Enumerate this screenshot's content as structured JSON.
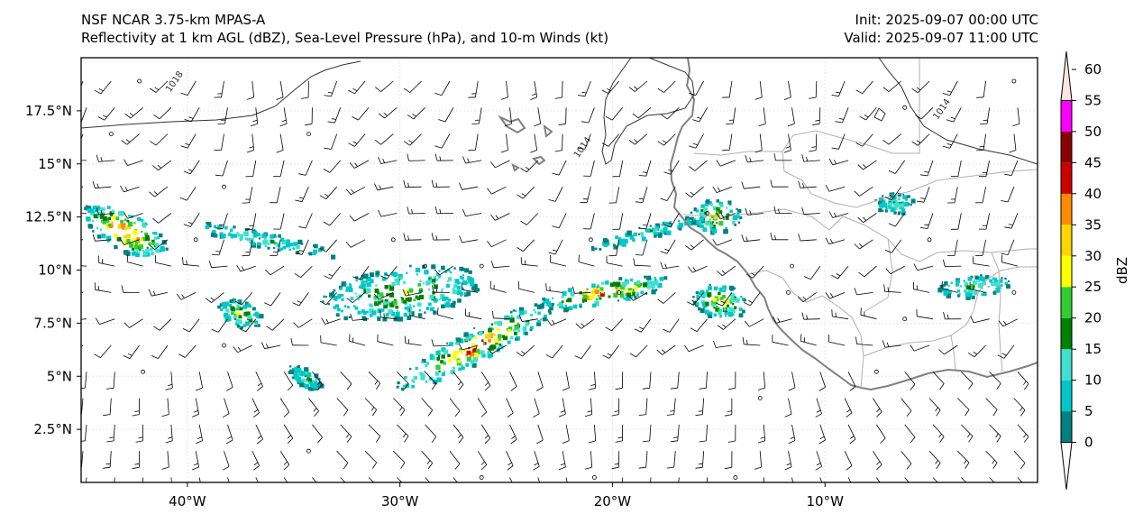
{
  "header": {
    "model": "NSF NCAR 3.75-km MPAS-A",
    "fields": "Reflectivity at 1 km AGL (dBZ), Sea-Level Pressure (hPa), and 10-m Winds (kt)",
    "init": "Init: 2025-09-07 00:00 UTC",
    "valid": "Valid: 2025-09-07 11:00 UTC"
  },
  "map": {
    "lon_range": [
      -45,
      0
    ],
    "lat_range": [
      0,
      20
    ],
    "lon_ticks": [
      {
        "value": -40,
        "label": "40°W"
      },
      {
        "value": -30,
        "label": "30°W"
      },
      {
        "value": -20,
        "label": "20°W"
      },
      {
        "value": -10,
        "label": "10°W"
      }
    ],
    "lat_ticks": [
      {
        "value": 2.5,
        "label": "2.5°N"
      },
      {
        "value": 5,
        "label": "5°N"
      },
      {
        "value": 7.5,
        "label": "7.5°N"
      },
      {
        "value": 10,
        "label": "10°N"
      },
      {
        "value": 12.5,
        "label": "12.5°N"
      },
      {
        "value": 15,
        "label": "15°N"
      },
      {
        "value": 17.5,
        "label": "17.5°N"
      }
    ],
    "isobar_labels": [
      {
        "text": "1018",
        "lon": -40.5,
        "lat": 18.8
      },
      {
        "text": "1014",
        "lon": -21.3,
        "lat": 15.7
      },
      {
        "text": "1014",
        "lon": -4.4,
        "lat": 17.5
      }
    ],
    "coastline_color": "#808080",
    "border_color": "#b0b0b0",
    "isobar_color": "#333333",
    "grid": true
  },
  "colorbar": {
    "label": "dBZ",
    "ticks": [
      "0",
      "5",
      "10",
      "15",
      "20",
      "25",
      "30",
      "35",
      "40",
      "45",
      "50",
      "55",
      "60"
    ],
    "colors": [
      "#008080",
      "#00c8c8",
      "#40e0d0",
      "#008000",
      "#32cd32",
      "#ffff00",
      "#ffd700",
      "#ff8c00",
      "#cc0000",
      "#8b0000",
      "#ff00ff",
      "#ffe4e1"
    ]
  },
  "precip_areas": [
    {
      "name": "cell-w",
      "lon": -43,
      "lat": 11.9,
      "rx": 2.2,
      "ry": 0.9,
      "rot": 28,
      "peak": 45
    },
    {
      "name": "band-w",
      "lon": -36.5,
      "lat": 11.5,
      "rx": 3.5,
      "ry": 0.35,
      "rot": 12,
      "peak": 15
    },
    {
      "name": "cell-mid-w",
      "lon": -37.6,
      "lat": 8.0,
      "rx": 1.1,
      "ry": 0.6,
      "rot": 20,
      "peak": 25
    },
    {
      "name": "blob-center",
      "lon": -30,
      "lat": 9.0,
      "rx": 3.8,
      "ry": 1.2,
      "rot": -8,
      "peak": 25
    },
    {
      "name": "band-se",
      "lon": -26.5,
      "lat": 6.5,
      "rx": 4.2,
      "ry": 0.75,
      "rot": -28,
      "peak": 40
    },
    {
      "name": "band-e",
      "lon": -20.5,
      "lat": 9.0,
      "rx": 3.2,
      "ry": 0.55,
      "rot": -10,
      "peak": 40
    },
    {
      "name": "band-ne",
      "lon": -18.5,
      "lat": 11.8,
      "rx": 3.0,
      "ry": 0.3,
      "rot": -15,
      "peak": 15
    },
    {
      "name": "coast-cells",
      "lon": -15.2,
      "lat": 12.6,
      "rx": 1.2,
      "ry": 0.8,
      "rot": 0,
      "peak": 30
    },
    {
      "name": "land-cells",
      "lon": -15,
      "lat": 8.6,
      "rx": 1.3,
      "ry": 0.8,
      "rot": 10,
      "peak": 30
    },
    {
      "name": "scatter-s",
      "lon": -34.5,
      "lat": 5.0,
      "rx": 0.9,
      "ry": 0.4,
      "rot": 30,
      "peak": 15
    },
    {
      "name": "far-e",
      "lon": -3.0,
      "lat": 9.3,
      "rx": 1.8,
      "ry": 0.5,
      "rot": -5,
      "peak": 20
    },
    {
      "name": "cell-ne",
      "lon": -6.8,
      "lat": 13.2,
      "rx": 0.9,
      "ry": 0.5,
      "rot": 0,
      "peak": 15
    }
  ]
}
